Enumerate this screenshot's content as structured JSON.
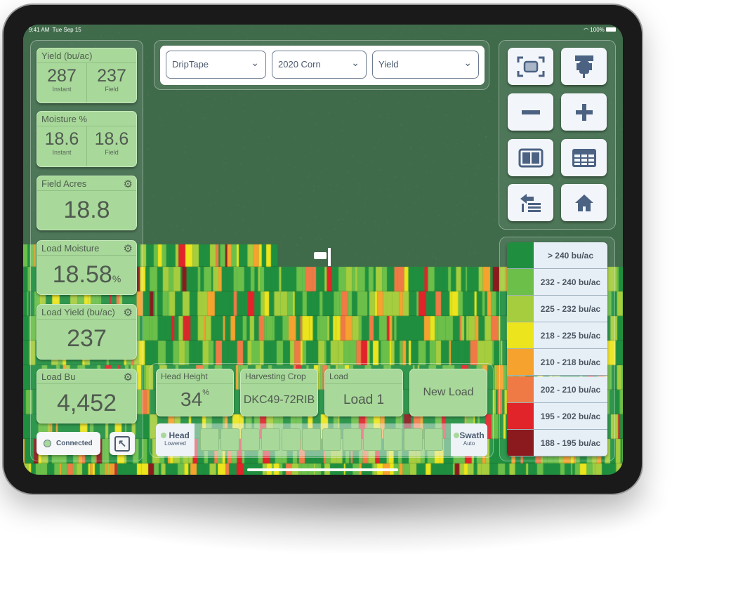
{
  "status_bar": {
    "time": "9:41 AM",
    "date": "Tue Sep 15",
    "battery": "100%"
  },
  "dropdowns": [
    {
      "value": "DripTape"
    },
    {
      "value": "2020 Corn"
    },
    {
      "value": "Yield"
    }
  ],
  "left_cards": {
    "yield": {
      "title": "Yield (bu/ac)",
      "instant": "287",
      "instant_label": "Instant",
      "field": "237",
      "field_label": "Field"
    },
    "moisture": {
      "title": "Moisture %",
      "instant": "18.6",
      "instant_label": "Instant",
      "field": "18.6",
      "field_label": "Field"
    },
    "field_acres": {
      "title": "Field Acres",
      "value": "18.8"
    },
    "load_moisture": {
      "title": "Load Moisture",
      "value": "18.58",
      "unit": "%"
    },
    "load_yield": {
      "title": "Load Yield (bu/ac)",
      "value": "237"
    },
    "load_bu": {
      "title": "Load Bu",
      "value": "4,452"
    }
  },
  "connection": {
    "label": "Connected",
    "indicator_color": "#a8d89a"
  },
  "right_buttons": [
    "fit-view-icon",
    "combine-icon",
    "zoom-out-icon",
    "zoom-in-icon",
    "split-view-icon",
    "table-icon",
    "back-list-icon",
    "home-icon"
  ],
  "legend": [
    {
      "label": "> 240 bu/ac",
      "color": "#1f8f3f"
    },
    {
      "label": "232 - 240 bu/ac",
      "color": "#6cc04a"
    },
    {
      "label": "225 - 232 bu/ac",
      "color": "#a6cd3e"
    },
    {
      "label": "218 - 225 bu/ac",
      "color": "#ece41c"
    },
    {
      "label": "210 - 218 bu/ac",
      "color": "#f6a22f"
    },
    {
      "label": "202 - 210 bu/ac",
      "color": "#f07a45"
    },
    {
      "label": "195 - 202 bu/ac",
      "color": "#e0242a"
    },
    {
      "label": "188 - 195 bu/ac",
      "color": "#8b1a1e"
    }
  ],
  "bottom_cards": {
    "head_height": {
      "title": "Head Height",
      "value": "34",
      "unit": "%"
    },
    "crop": {
      "title": "Harvesting Crop",
      "value": "DKC49-72RIB"
    },
    "load": {
      "title": "Load",
      "value": "Load 1"
    },
    "new_load": {
      "label": "New Load"
    }
  },
  "swath_bar": {
    "head_label": "Head",
    "head_state": "Lowered",
    "swath_label": "Swath",
    "swath_state": "Auto",
    "sections": 12
  }
}
